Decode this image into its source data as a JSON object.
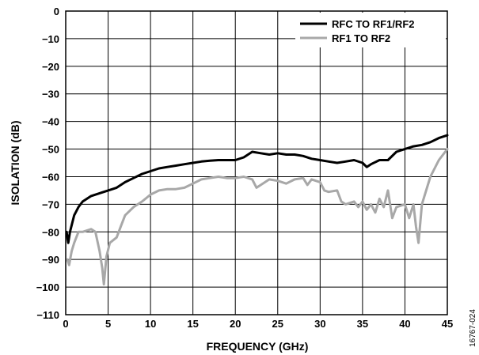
{
  "chart_data": {
    "type": "line",
    "title": "",
    "xlabel": "FREQUENCY (GHz)",
    "ylabel": "ISOLATION (dB)",
    "xlim": [
      0,
      45
    ],
    "ylim": [
      -110,
      0
    ],
    "grid": true,
    "legend_position": "top-right",
    "x_ticks": [
      0,
      5,
      10,
      15,
      20,
      25,
      30,
      35,
      40,
      45
    ],
    "y_ticks": [
      0,
      -10,
      -20,
      -30,
      -40,
      -50,
      -60,
      -70,
      -80,
      -90,
      -100,
      -110
    ],
    "x_tick_labels": [
      "0",
      "5",
      "10",
      "15",
      "20",
      "25",
      "30",
      "35",
      "40",
      "45"
    ],
    "y_tick_labels": [
      "0",
      "−10",
      "−20",
      "−30",
      "−40",
      "−50",
      "−60",
      "−70",
      "−80",
      "−90",
      "−100",
      "−110"
    ],
    "figure_code": "16767-024",
    "series": [
      {
        "name": "RFC TO RF1/RF2",
        "color": "#000000",
        "points": [
          [
            0.1,
            -80
          ],
          [
            0.3,
            -84
          ],
          [
            0.5,
            -80
          ],
          [
            1,
            -74
          ],
          [
            1.5,
            -71
          ],
          [
            2,
            -69
          ],
          [
            3,
            -67
          ],
          [
            4,
            -66
          ],
          [
            5,
            -65
          ],
          [
            6,
            -64
          ],
          [
            7,
            -62
          ],
          [
            8,
            -60.5
          ],
          [
            9,
            -59
          ],
          [
            10,
            -58
          ],
          [
            11,
            -57
          ],
          [
            12,
            -56.5
          ],
          [
            13,
            -56
          ],
          [
            14,
            -55.5
          ],
          [
            15,
            -55
          ],
          [
            16,
            -54.5
          ],
          [
            17,
            -54.2
          ],
          [
            18,
            -54
          ],
          [
            19,
            -54
          ],
          [
            20,
            -54
          ],
          [
            21,
            -53
          ],
          [
            22,
            -51
          ],
          [
            23,
            -51.5
          ],
          [
            24,
            -52
          ],
          [
            25,
            -51.5
          ],
          [
            26,
            -52
          ],
          [
            27,
            -52
          ],
          [
            28,
            -52.5
          ],
          [
            29,
            -53.5
          ],
          [
            30,
            -54
          ],
          [
            31,
            -54.5
          ],
          [
            32,
            -55
          ],
          [
            33,
            -54.5
          ],
          [
            34,
            -54
          ],
          [
            35,
            -55
          ],
          [
            35.5,
            -56.5
          ],
          [
            36,
            -55.5
          ],
          [
            37,
            -54
          ],
          [
            38,
            -54
          ],
          [
            39,
            -51
          ],
          [
            40,
            -50
          ],
          [
            41,
            -49
          ],
          [
            42,
            -48.5
          ],
          [
            43,
            -47.5
          ],
          [
            44,
            -46
          ],
          [
            45,
            -45
          ]
        ]
      },
      {
        "name": "RF1 TO RF2",
        "color": "#a8a8a8",
        "points": [
          [
            0.2,
            -90
          ],
          [
            0.4,
            -92
          ],
          [
            0.7,
            -87
          ],
          [
            1,
            -84
          ],
          [
            1.5,
            -80
          ],
          [
            2,
            -80
          ],
          [
            2.5,
            -79.5
          ],
          [
            3,
            -79
          ],
          [
            3.5,
            -80
          ],
          [
            4,
            -87
          ],
          [
            4.3,
            -93
          ],
          [
            4.5,
            -99
          ],
          [
            4.8,
            -89
          ],
          [
            5.2,
            -84
          ],
          [
            6,
            -82
          ],
          [
            6.5,
            -78
          ],
          [
            7,
            -74
          ],
          [
            8,
            -71
          ],
          [
            9,
            -69
          ],
          [
            10,
            -66.5
          ],
          [
            11,
            -65
          ],
          [
            12,
            -64.5
          ],
          [
            13,
            -64.5
          ],
          [
            14,
            -64
          ],
          [
            15,
            -62.5
          ],
          [
            16,
            -61
          ],
          [
            17,
            -60.5
          ],
          [
            18,
            -60
          ],
          [
            19,
            -60.5
          ],
          [
            20,
            -60.5
          ],
          [
            21,
            -60
          ],
          [
            22,
            -61
          ],
          [
            22.5,
            -64
          ],
          [
            23,
            -63
          ],
          [
            24,
            -61
          ],
          [
            25,
            -61.5
          ],
          [
            26,
            -62.5
          ],
          [
            27,
            -61
          ],
          [
            28,
            -60.5
          ],
          [
            28.5,
            -63
          ],
          [
            29,
            -61
          ],
          [
            30,
            -62
          ],
          [
            30.5,
            -65
          ],
          [
            31,
            -65.5
          ],
          [
            32,
            -65
          ],
          [
            32.5,
            -69
          ],
          [
            33,
            -70
          ],
          [
            34,
            -69
          ],
          [
            34.5,
            -71
          ],
          [
            35,
            -69
          ],
          [
            35.5,
            -72
          ],
          [
            36,
            -70
          ],
          [
            36.5,
            -73
          ],
          [
            37,
            -68
          ],
          [
            37.5,
            -71
          ],
          [
            38,
            -65
          ],
          [
            38.5,
            -75
          ],
          [
            39,
            -71
          ],
          [
            40,
            -70
          ],
          [
            40.5,
            -75
          ],
          [
            41,
            -70
          ],
          [
            41.3,
            -78
          ],
          [
            41.6,
            -84
          ],
          [
            42,
            -70
          ],
          [
            43,
            -60
          ],
          [
            44,
            -54
          ],
          [
            45,
            -50
          ]
        ]
      }
    ]
  }
}
